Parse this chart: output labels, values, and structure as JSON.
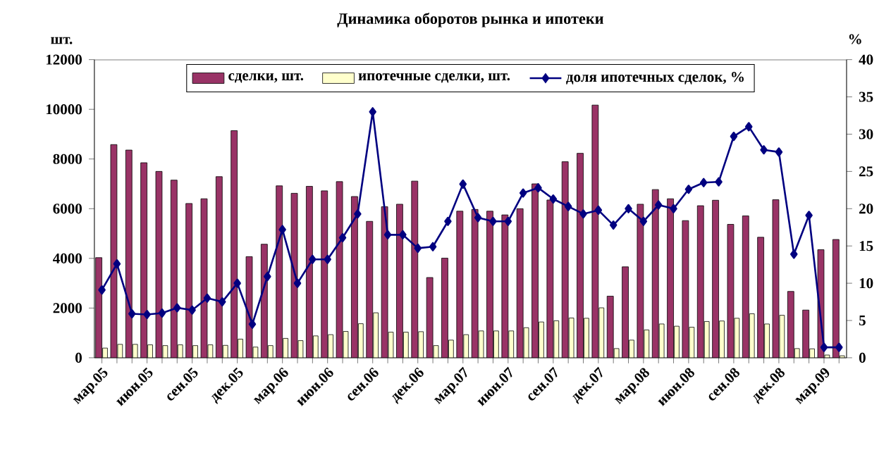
{
  "chart_data": {
    "type": "bar",
    "title": "Динамика оборотов рынка и ипотеки",
    "ylabel": "шт.",
    "y2label": "%",
    "categories": [
      "мар.05",
      null,
      null,
      "июн.05",
      null,
      null,
      "сен.05",
      null,
      null,
      "дек.05",
      null,
      null,
      "мар.06",
      null,
      null,
      "июн.06",
      null,
      null,
      "сен.06",
      null,
      null,
      "дек.06",
      null,
      null,
      "мар.07",
      null,
      null,
      "июн.07",
      null,
      null,
      "сен.07",
      null,
      null,
      "дек.07",
      null,
      null,
      "мар.08",
      null,
      null,
      "июн.08",
      null,
      null,
      "сен.08",
      null,
      null,
      "дек.08",
      null,
      null,
      "мар.09",
      null
    ],
    "series": [
      {
        "name": "сделки, шт.",
        "color": "#993366",
        "values": [
          4030,
          8580,
          8360,
          7850,
          7500,
          7150,
          6210,
          6400,
          7290,
          9140,
          4070,
          4570,
          6920,
          6620,
          6900,
          6720,
          7090,
          6490,
          5490,
          6080,
          6180,
          7110,
          3230,
          4010,
          5900,
          5970,
          5900,
          5750,
          6000,
          7000,
          6350,
          7890,
          8230,
          10170,
          2480,
          3660,
          6180,
          6770,
          6400,
          5520,
          6120,
          6340,
          5370,
          5710,
          4850,
          6360,
          2670,
          1920,
          4350,
          4760
        ]
      },
      {
        "name": "ипотечные сделки, шт.",
        "color": "#ffffcc",
        "values": [
          390,
          540,
          540,
          520,
          490,
          520,
          490,
          520,
          500,
          750,
          430,
          490,
          780,
          690,
          880,
          930,
          1060,
          1370,
          1810,
          1030,
          1030,
          1050,
          490,
          710,
          930,
          1080,
          1080,
          1080,
          1210,
          1440,
          1490,
          1600,
          1590,
          2010,
          370,
          710,
          1120,
          1360,
          1270,
          1230,
          1460,
          1480,
          1590,
          1770,
          1360,
          1710,
          370,
          360,
          110,
          80
        ]
      },
      {
        "name": "доля ипотечных сделок, %",
        "type": "line",
        "axis": "y2",
        "color": "#000080",
        "values": [
          9.1,
          12.6,
          5.9,
          5.8,
          6.0,
          6.7,
          6.4,
          8.0,
          7.5,
          10.0,
          4.5,
          10.9,
          17.2,
          10.0,
          13.2,
          13.2,
          16.1,
          19.3,
          33.0,
          16.5,
          16.5,
          14.7,
          14.9,
          18.3,
          23.3,
          18.8,
          18.3,
          18.3,
          22.1,
          22.8,
          21.3,
          20.3,
          19.3,
          19.8,
          17.8,
          20.0,
          18.3,
          20.5,
          20.0,
          22.6,
          23.5,
          23.6,
          29.7,
          31.0,
          27.9,
          27.6,
          13.9,
          19.1,
          1.4,
          1.4
        ]
      }
    ],
    "ylim": [
      0,
      12000
    ],
    "yticks": [
      0,
      2000,
      4000,
      6000,
      8000,
      10000,
      12000
    ],
    "y2lim": [
      0,
      40
    ],
    "y2ticks": [
      0,
      5,
      10,
      15,
      20,
      25,
      30,
      35,
      40
    ],
    "legend": "top",
    "marker": "diamond"
  }
}
